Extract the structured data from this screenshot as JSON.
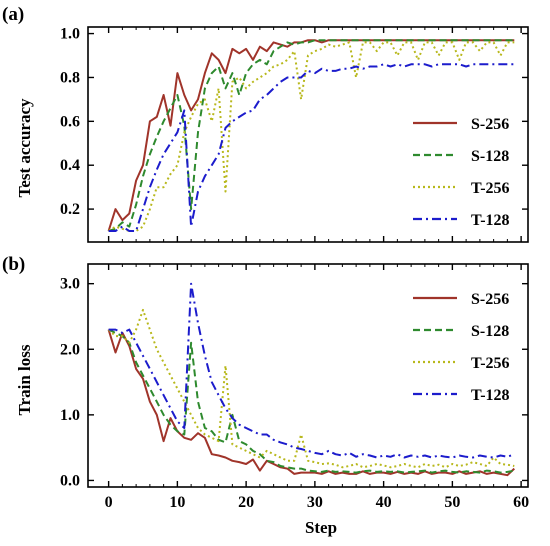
{
  "figure": {
    "panels": [
      {
        "label": "(a)",
        "ylabel": "Test accuracy",
        "xlabel": ""
      },
      {
        "label": "(b)",
        "ylabel": "Train loss",
        "xlabel": "Step"
      }
    ],
    "colors": {
      "S-256": "#a0342a",
      "S-128": "#2e8a2e",
      "T-256": "#b8b81c",
      "T-128": "#1c1ccc"
    }
  },
  "chart_data": [
    {
      "type": "line",
      "title": "",
      "xlabel": "",
      "ylabel": "Test accuracy",
      "xlim": [
        -3,
        61
      ],
      "ylim": [
        0.05,
        1.03
      ],
      "xticks": [
        0,
        10,
        20,
        30,
        40,
        50,
        60
      ],
      "yticks": [
        0.2,
        0.4,
        0.6,
        0.8,
        1.0
      ],
      "ytick_labels": [
        "0.2",
        "0.4",
        "0.6",
        "0.8",
        "1.0"
      ],
      "xtick_labels": [
        "",
        "",
        "",
        "",
        "",
        "",
        ""
      ],
      "legend": "right",
      "grid": false,
      "series": [
        {
          "name": "S-256",
          "style": "solid",
          "color": "#a0342a",
          "x": [
            0,
            1,
            2,
            3,
            4,
            5,
            6,
            7,
            8,
            9,
            10,
            11,
            12,
            13,
            14,
            15,
            16,
            17,
            18,
            19,
            20,
            21,
            22,
            23,
            24,
            25,
            26,
            27,
            28,
            29,
            30,
            31,
            32,
            33,
            34,
            35,
            36,
            37,
            38,
            39,
            40,
            41,
            42,
            43,
            44,
            45,
            46,
            47,
            48,
            49,
            50,
            51,
            52,
            53,
            54,
            55,
            56,
            57,
            58,
            59
          ],
          "y": [
            0.1,
            0.2,
            0.15,
            0.18,
            0.33,
            0.4,
            0.6,
            0.62,
            0.72,
            0.58,
            0.82,
            0.72,
            0.65,
            0.7,
            0.82,
            0.91,
            0.88,
            0.82,
            0.93,
            0.91,
            0.93,
            0.88,
            0.94,
            0.92,
            0.96,
            0.95,
            0.94,
            0.96,
            0.96,
            0.97,
            0.97,
            0.96,
            0.97,
            0.97,
            0.97,
            0.97,
            0.97,
            0.97,
            0.97,
            0.97,
            0.97,
            0.97,
            0.97,
            0.97,
            0.97,
            0.97,
            0.97,
            0.97,
            0.97,
            0.97,
            0.97,
            0.97,
            0.97,
            0.97,
            0.97,
            0.97,
            0.97,
            0.97,
            0.97,
            0.97
          ]
        },
        {
          "name": "S-128",
          "style": "dashed",
          "color": "#2e8a2e",
          "x": [
            0,
            1,
            2,
            3,
            4,
            5,
            6,
            7,
            8,
            9,
            10,
            11,
            12,
            13,
            14,
            15,
            16,
            17,
            18,
            19,
            20,
            21,
            22,
            23,
            24,
            25,
            26,
            27,
            28,
            29,
            30,
            31,
            32,
            33,
            34,
            35,
            36,
            37,
            38,
            39,
            40,
            41,
            42,
            43,
            44,
            45,
            46,
            47,
            48,
            49,
            50,
            51,
            52,
            53,
            54,
            55,
            56,
            57,
            58,
            59
          ],
          "y": [
            0.1,
            0.11,
            0.14,
            0.12,
            0.22,
            0.35,
            0.45,
            0.53,
            0.6,
            0.66,
            0.72,
            0.58,
            0.2,
            0.55,
            0.75,
            0.82,
            0.85,
            0.75,
            0.82,
            0.72,
            0.82,
            0.86,
            0.88,
            0.86,
            0.92,
            0.94,
            0.96,
            0.95,
            0.96,
            0.96,
            0.97,
            0.97,
            0.97,
            0.97,
            0.97,
            0.97,
            0.97,
            0.97,
            0.97,
            0.97,
            0.97,
            0.97,
            0.97,
            0.97,
            0.97,
            0.97,
            0.97,
            0.97,
            0.97,
            0.97,
            0.97,
            0.97,
            0.97,
            0.97,
            0.97,
            0.97,
            0.97,
            0.97,
            0.97,
            0.97
          ]
        },
        {
          "name": "T-256",
          "style": "dotted",
          "color": "#b8b81c",
          "x": [
            0,
            1,
            2,
            3,
            4,
            5,
            6,
            7,
            8,
            9,
            10,
            11,
            12,
            13,
            14,
            15,
            16,
            17,
            18,
            19,
            20,
            21,
            22,
            23,
            24,
            25,
            26,
            27,
            28,
            29,
            30,
            31,
            32,
            33,
            34,
            35,
            36,
            37,
            38,
            39,
            40,
            41,
            42,
            43,
            44,
            45,
            46,
            47,
            48,
            49,
            50,
            51,
            52,
            53,
            54,
            55,
            56,
            57,
            58,
            59
          ],
          "y": [
            0.1,
            0.12,
            0.11,
            0.1,
            0.1,
            0.12,
            0.2,
            0.3,
            0.3,
            0.36,
            0.4,
            0.55,
            0.62,
            0.68,
            0.7,
            0.6,
            0.75,
            0.28,
            0.78,
            0.8,
            0.75,
            0.78,
            0.8,
            0.82,
            0.85,
            0.86,
            0.88,
            0.92,
            0.7,
            0.9,
            0.92,
            0.93,
            0.95,
            0.94,
            0.95,
            0.96,
            0.8,
            0.96,
            0.96,
            0.92,
            0.96,
            0.96,
            0.9,
            0.96,
            0.96,
            0.88,
            0.96,
            0.96,
            0.9,
            0.96,
            0.96,
            0.88,
            0.96,
            0.96,
            0.92,
            0.96,
            0.96,
            0.9,
            0.96,
            0.96
          ]
        },
        {
          "name": "T-128",
          "style": "dashdot",
          "color": "#1c1ccc",
          "x": [
            0,
            1,
            2,
            3,
            4,
            5,
            6,
            7,
            8,
            9,
            10,
            11,
            12,
            13,
            14,
            15,
            16,
            17,
            18,
            19,
            20,
            21,
            22,
            23,
            24,
            25,
            26,
            27,
            28,
            29,
            30,
            31,
            32,
            33,
            34,
            35,
            36,
            37,
            38,
            39,
            40,
            41,
            42,
            43,
            44,
            45,
            46,
            47,
            48,
            49,
            50,
            51,
            52,
            53,
            54,
            55,
            56,
            57,
            58,
            59
          ],
          "y": [
            0.1,
            0.1,
            0.12,
            0.1,
            0.1,
            0.2,
            0.3,
            0.38,
            0.45,
            0.5,
            0.55,
            0.65,
            0.12,
            0.28,
            0.35,
            0.4,
            0.45,
            0.57,
            0.6,
            0.62,
            0.64,
            0.65,
            0.7,
            0.72,
            0.75,
            0.78,
            0.8,
            0.8,
            0.8,
            0.83,
            0.82,
            0.84,
            0.83,
            0.83,
            0.84,
            0.84,
            0.85,
            0.84,
            0.85,
            0.85,
            0.86,
            0.85,
            0.86,
            0.85,
            0.86,
            0.86,
            0.86,
            0.85,
            0.86,
            0.86,
            0.86,
            0.86,
            0.85,
            0.86,
            0.86,
            0.86,
            0.86,
            0.86,
            0.86,
            0.86
          ]
        }
      ]
    },
    {
      "type": "line",
      "title": "",
      "xlabel": "Step",
      "ylabel": "Train loss",
      "xlim": [
        -3,
        61
      ],
      "ylim": [
        -0.1,
        3.3
      ],
      "xticks": [
        0,
        10,
        20,
        30,
        40,
        50,
        60
      ],
      "xtick_labels": [
        "0",
        "10",
        "20",
        "30",
        "40",
        "50",
        "60"
      ],
      "yticks": [
        0.0,
        1.0,
        2.0,
        3.0
      ],
      "ytick_labels": [
        "0.0",
        "1.0",
        "2.0",
        "3.0"
      ],
      "legend": "top-right",
      "grid": false,
      "series": [
        {
          "name": "S-256",
          "style": "solid",
          "color": "#a0342a",
          "x": [
            0,
            1,
            2,
            3,
            4,
            5,
            6,
            7,
            8,
            9,
            10,
            11,
            12,
            13,
            14,
            15,
            16,
            17,
            18,
            19,
            20,
            21,
            22,
            23,
            24,
            25,
            26,
            27,
            28,
            29,
            30,
            31,
            32,
            33,
            34,
            35,
            36,
            37,
            38,
            39,
            40,
            41,
            42,
            43,
            44,
            45,
            46,
            47,
            48,
            49,
            50,
            51,
            52,
            53,
            54,
            55,
            56,
            57,
            58,
            59
          ],
          "y": [
            2.3,
            1.95,
            2.25,
            2.05,
            1.7,
            1.55,
            1.2,
            1.0,
            0.6,
            0.95,
            0.75,
            0.65,
            0.62,
            0.72,
            0.65,
            0.4,
            0.38,
            0.35,
            0.3,
            0.28,
            0.25,
            0.32,
            0.15,
            0.3,
            0.25,
            0.2,
            0.18,
            0.1,
            0.12,
            0.12,
            0.12,
            0.1,
            0.14,
            0.1,
            0.12,
            0.1,
            0.1,
            0.14,
            0.1,
            0.12,
            0.12,
            0.1,
            0.13,
            0.1,
            0.12,
            0.1,
            0.14,
            0.1,
            0.12,
            0.12,
            0.1,
            0.14,
            0.1,
            0.12,
            0.14,
            0.1,
            0.12,
            0.1,
            0.08,
            0.18
          ]
        },
        {
          "name": "S-128",
          "style": "dashed",
          "color": "#2e8a2e",
          "x": [
            0,
            1,
            2,
            3,
            4,
            5,
            6,
            7,
            8,
            9,
            10,
            11,
            12,
            13,
            14,
            15,
            16,
            17,
            18,
            19,
            20,
            21,
            22,
            23,
            24,
            25,
            26,
            27,
            28,
            29,
            30,
            31,
            32,
            33,
            34,
            35,
            36,
            37,
            38,
            39,
            40,
            41,
            42,
            43,
            44,
            45,
            46,
            47,
            48,
            49,
            50,
            51,
            52,
            53,
            54,
            55,
            56,
            57,
            58,
            59
          ],
          "y": [
            2.3,
            2.25,
            2.2,
            2.1,
            1.8,
            1.6,
            1.4,
            1.2,
            1.0,
            0.85,
            0.75,
            0.7,
            2.1,
            1.2,
            0.8,
            0.75,
            0.62,
            0.58,
            1.0,
            0.6,
            0.55,
            0.45,
            0.4,
            0.3,
            0.28,
            0.22,
            0.2,
            0.18,
            0.18,
            0.15,
            0.14,
            0.13,
            0.15,
            0.13,
            0.14,
            0.13,
            0.12,
            0.14,
            0.15,
            0.13,
            0.14,
            0.13,
            0.14,
            0.12,
            0.13,
            0.14,
            0.15,
            0.12,
            0.14,
            0.15,
            0.13,
            0.12,
            0.14,
            0.13,
            0.12,
            0.15,
            0.14,
            0.12,
            0.13,
            0.15
          ]
        },
        {
          "name": "T-256",
          "style": "dotted",
          "color": "#b8b81c",
          "x": [
            0,
            1,
            2,
            3,
            4,
            5,
            6,
            7,
            8,
            9,
            10,
            11,
            12,
            13,
            14,
            15,
            16,
            17,
            18,
            19,
            20,
            21,
            22,
            23,
            24,
            25,
            26,
            27,
            28,
            29,
            30,
            31,
            32,
            33,
            34,
            35,
            36,
            37,
            38,
            39,
            40,
            41,
            42,
            43,
            44,
            45,
            46,
            47,
            48,
            49,
            50,
            51,
            52,
            53,
            54,
            55,
            56,
            57,
            58,
            59
          ],
          "y": [
            2.3,
            2.2,
            2.2,
            2.1,
            2.3,
            2.6,
            2.3,
            2.0,
            1.8,
            1.6,
            1.4,
            1.2,
            1.0,
            0.8,
            0.7,
            0.65,
            0.6,
            1.75,
            0.55,
            0.5,
            0.45,
            0.4,
            0.35,
            0.45,
            0.4,
            0.35,
            0.3,
            0.3,
            0.7,
            0.3,
            0.28,
            0.25,
            0.26,
            0.24,
            0.2,
            0.22,
            0.25,
            0.2,
            0.22,
            0.25,
            0.23,
            0.2,
            0.22,
            0.25,
            0.22,
            0.2,
            0.25,
            0.22,
            0.24,
            0.2,
            0.25,
            0.22,
            0.24,
            0.28,
            0.25,
            0.22,
            0.35,
            0.25,
            0.24,
            0.22
          ]
        },
        {
          "name": "T-128",
          "style": "dashdot",
          "color": "#1c1ccc",
          "x": [
            0,
            1,
            2,
            3,
            4,
            5,
            6,
            7,
            8,
            9,
            10,
            11,
            12,
            13,
            14,
            15,
            16,
            17,
            18,
            19,
            20,
            21,
            22,
            23,
            24,
            25,
            26,
            27,
            28,
            29,
            30,
            31,
            32,
            33,
            34,
            35,
            36,
            37,
            38,
            39,
            40,
            41,
            42,
            43,
            44,
            45,
            46,
            47,
            48,
            49,
            50,
            51,
            52,
            53,
            54,
            55,
            56,
            57,
            58,
            59
          ],
          "y": [
            2.3,
            2.3,
            2.25,
            2.3,
            2.1,
            1.9,
            1.7,
            1.5,
            1.3,
            1.1,
            0.9,
            0.8,
            3.0,
            2.4,
            1.9,
            1.5,
            1.3,
            1.1,
            0.95,
            0.85,
            0.8,
            0.75,
            0.7,
            0.7,
            0.62,
            0.58,
            0.55,
            0.5,
            0.48,
            0.45,
            0.42,
            0.4,
            0.45,
            0.4,
            0.38,
            0.42,
            0.36,
            0.4,
            0.38,
            0.35,
            0.38,
            0.36,
            0.4,
            0.35,
            0.38,
            0.36,
            0.38,
            0.35,
            0.38,
            0.36,
            0.35,
            0.38,
            0.36,
            0.35,
            0.38,
            0.36,
            0.35,
            0.38,
            0.36,
            0.4
          ]
        }
      ]
    }
  ]
}
